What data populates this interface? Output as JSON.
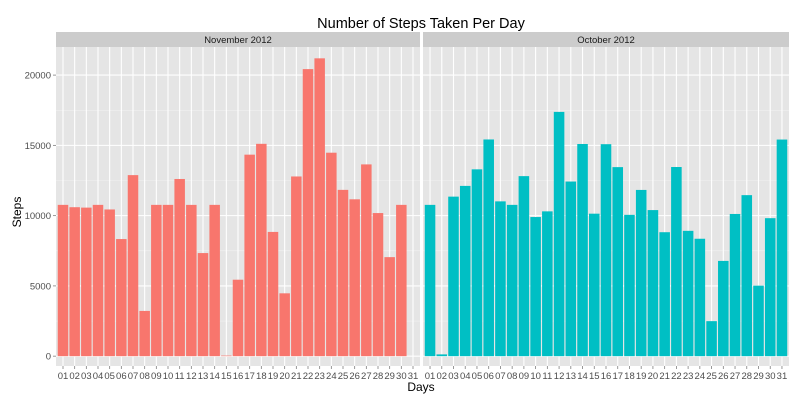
{
  "chart_data": {
    "type": "bar",
    "title": "Number of Steps Taken Per Day",
    "xlabel": "Days",
    "ylabel": "Steps",
    "ylim": [
      -700,
      22000
    ],
    "yticks": [
      0,
      5000,
      10000,
      15000,
      20000
    ],
    "yticklabels": [
      "0",
      "5000",
      "10000",
      "15000",
      "20000"
    ],
    "categories": [
      "01",
      "02",
      "03",
      "04",
      "05",
      "06",
      "07",
      "08",
      "09",
      "10",
      "11",
      "12",
      "13",
      "14",
      "15",
      "16",
      "17",
      "18",
      "19",
      "20",
      "21",
      "22",
      "23",
      "24",
      "25",
      "26",
      "27",
      "28",
      "29",
      "30",
      "31"
    ],
    "grid": true,
    "legend": "none",
    "panels": [
      {
        "name": "November 2012",
        "color": "#F8766D",
        "values": [
          10766,
          10600,
          10571,
          10766,
          10439,
          8334,
          12883,
          3219,
          10766,
          10766,
          12608,
          10765,
          7336,
          10766,
          41,
          5441,
          14339,
          15110,
          8841,
          4472,
          12787,
          20427,
          21194,
          14478,
          11834,
          11162,
          13646,
          10183,
          7047,
          10766,
          0
        ]
      },
      {
        "name": "October 2012",
        "color": "#00BFC4",
        "values": [
          10766,
          126,
          11352,
          12116,
          13294,
          15420,
          11015,
          10766,
          12811,
          9900,
          10304,
          17382,
          12426,
          15098,
          10139,
          15084,
          13452,
          10056,
          11829,
          10395,
          8821,
          13460,
          8918,
          8355,
          2492,
          6778,
          10119,
          11458,
          5018,
          9819,
          15414
        ]
      }
    ]
  }
}
